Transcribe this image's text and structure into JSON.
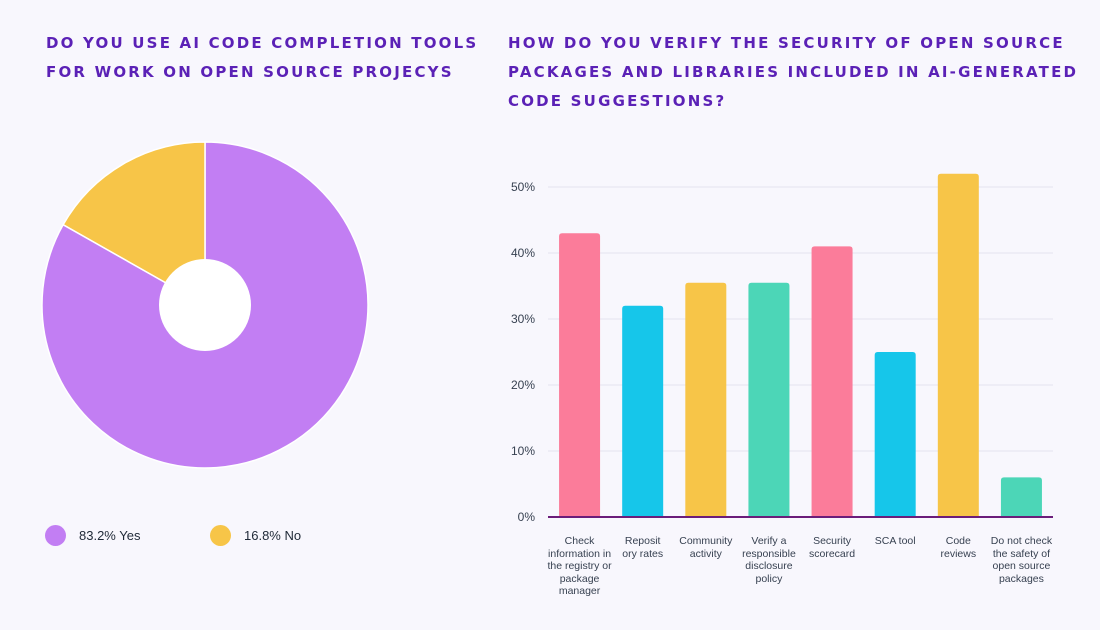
{
  "left": {
    "title_lines": [
      "DO YOU USE AI CODE COMPLETION TOOLS",
      "FOR WORK ON OPEN SOURCE PROJECYS"
    ]
  },
  "right": {
    "title_lines": [
      "HOW DO YOU VERIFY THE SECURITY OF OPEN SOURCE",
      "PACKAGES AND LIBRARIES INCLUDED IN AI-GENERATED",
      "CODE SUGGESTIONS?"
    ]
  },
  "legend": {
    "yes_label": "83.2% Yes",
    "no_label": "16.8% No"
  },
  "colors": {
    "title": "#5b21b6",
    "yes": "#c27ef3",
    "no": "#f7c548",
    "pink": "#fb7c9a",
    "blue": "#16c6ea",
    "yellow": "#f7c548",
    "green": "#4cd6b7",
    "axis": "#6b1d7a",
    "grid": "#e5e3ee"
  },
  "chart_data": [
    {
      "type": "pie",
      "title": "DO YOU USE AI CODE COMPLETION TOOLS FOR WORK ON OPEN SOURCE PROJECYS",
      "donut": true,
      "slices": [
        {
          "label": "Yes",
          "value": 83.2,
          "color": "#c27ef3"
        },
        {
          "label": "No",
          "value": 16.8,
          "color": "#f7c548"
        }
      ],
      "legend_position": "bottom"
    },
    {
      "type": "bar",
      "title": "HOW DO YOU VERIFY THE SECURITY OF OPEN SOURCE PACKAGES AND LIBRARIES INCLUDED IN AI-GENERATED CODE SUGGESTIONS?",
      "categories": [
        [
          "Check",
          "information in",
          "the registry or",
          "package",
          "manager"
        ],
        [
          "Reposit",
          "ory rates"
        ],
        [
          "Community",
          "activity"
        ],
        [
          "Verify a",
          "responsible",
          "disclosure",
          "policy"
        ],
        [
          "Security",
          "scorecard"
        ],
        [
          "SCA tool"
        ],
        [
          "Code",
          "reviews"
        ],
        [
          "Do not check",
          "the safety of",
          "open source",
          "packages"
        ]
      ],
      "values": [
        43,
        32,
        35.5,
        35.5,
        41,
        25,
        52,
        6
      ],
      "bar_colors": [
        "#fb7c9a",
        "#16c6ea",
        "#f7c548",
        "#4cd6b7",
        "#fb7c9a",
        "#16c6ea",
        "#f7c548",
        "#4cd6b7"
      ],
      "ylim": [
        0,
        50
      ],
      "yticks": [
        0,
        10,
        20,
        30,
        40,
        50
      ],
      "ytick_labels": [
        "0%",
        "10%",
        "20%",
        "30%",
        "40%",
        "50%"
      ],
      "xlabel": "",
      "ylabel": "",
      "grid": true
    }
  ]
}
